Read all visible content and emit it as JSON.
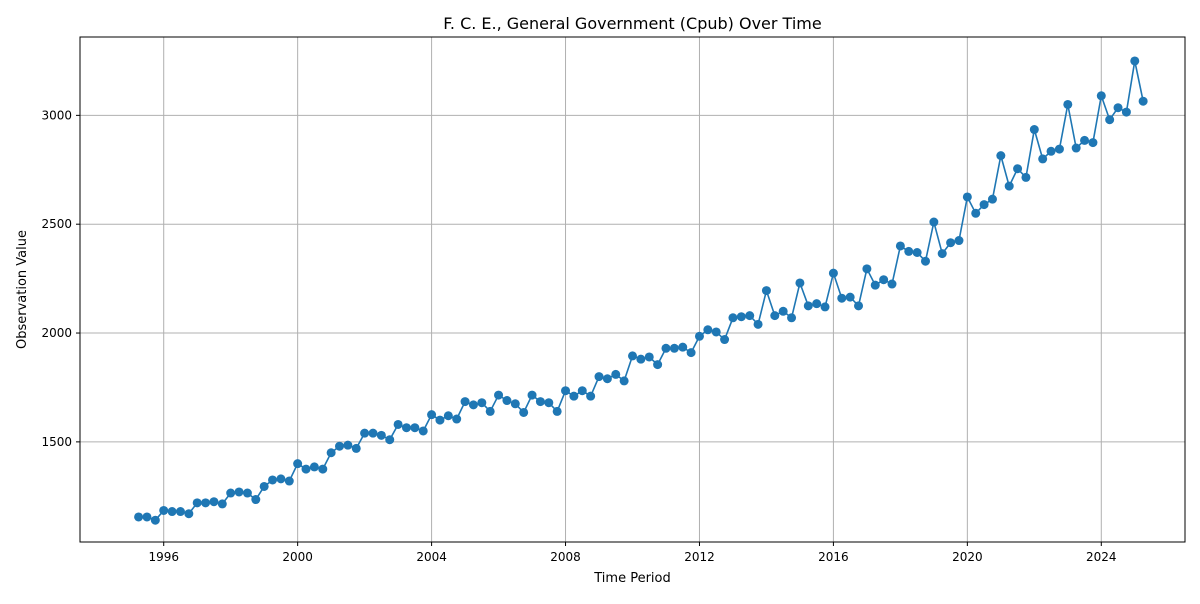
{
  "chart_data": {
    "type": "line",
    "title": "F. C. E., General Government (Cpub) Over Time",
    "xlabel": "Time Period",
    "ylabel": "Observation Value",
    "xlim": [
      1993.5,
      2026.5
    ],
    "ylim": [
      1040,
      3360
    ],
    "x_ticks": [
      1996,
      2000,
      2004,
      2008,
      2012,
      2016,
      2020,
      2024
    ],
    "y_ticks": [
      1500,
      2000,
      2500,
      3000
    ],
    "grid": true,
    "colors": {
      "series": "#1f77b4",
      "grid": "#b0b0b0",
      "axes": "#000000"
    },
    "series": [
      {
        "x": [
          "1995-Q2",
          "1995-Q3",
          "1995-Q4",
          "1996-Q1",
          "1996-Q2",
          "1996-Q3",
          "1996-Q4",
          "1997-Q1",
          "1997-Q2",
          "1997-Q3",
          "1997-Q4",
          "1998-Q1",
          "1998-Q2",
          "1998-Q3",
          "1998-Q4",
          "1999-Q1",
          "1999-Q2",
          "1999-Q3",
          "1999-Q4",
          "2000-Q1",
          "2000-Q2",
          "2000-Q3",
          "2000-Q4",
          "2001-Q1",
          "2001-Q2",
          "2001-Q3",
          "2001-Q4",
          "2002-Q1",
          "2002-Q2",
          "2002-Q3",
          "2002-Q4",
          "2003-Q1",
          "2003-Q2",
          "2003-Q3",
          "2003-Q4",
          "2004-Q1",
          "2004-Q2",
          "2004-Q3",
          "2004-Q4",
          "2005-Q1",
          "2005-Q2",
          "2005-Q3",
          "2005-Q4",
          "2006-Q1",
          "2006-Q2",
          "2006-Q3",
          "2006-Q4",
          "2007-Q1",
          "2007-Q2",
          "2007-Q3",
          "2007-Q4",
          "2008-Q1",
          "2008-Q2",
          "2008-Q3",
          "2008-Q4",
          "2009-Q1",
          "2009-Q2",
          "2009-Q3",
          "2009-Q4",
          "2010-Q1",
          "2010-Q2",
          "2010-Q3",
          "2010-Q4",
          "2011-Q1",
          "2011-Q2",
          "2011-Q3",
          "2011-Q4",
          "2012-Q1",
          "2012-Q2",
          "2012-Q3",
          "2012-Q4",
          "2013-Q1",
          "2013-Q2",
          "2013-Q3",
          "2013-Q4",
          "2014-Q1",
          "2014-Q2",
          "2014-Q3",
          "2014-Q4",
          "2015-Q1",
          "2015-Q2",
          "2015-Q3",
          "2015-Q4",
          "2016-Q1",
          "2016-Q2",
          "2016-Q3",
          "2016-Q4",
          "2017-Q1",
          "2017-Q2",
          "2017-Q3",
          "2017-Q4",
          "2018-Q1",
          "2018-Q2",
          "2018-Q3",
          "2018-Q4",
          "2019-Q1",
          "2019-Q2",
          "2019-Q3",
          "2019-Q4",
          "2020-Q1",
          "2020-Q2",
          "2020-Q3",
          "2020-Q4",
          "2021-Q1",
          "2021-Q2",
          "2021-Q3",
          "2021-Q4",
          "2022-Q1",
          "2022-Q2",
          "2022-Q3",
          "2022-Q4",
          "2023-Q1",
          "2023-Q2",
          "2023-Q3",
          "2023-Q4",
          "2024-Q1",
          "2024-Q2",
          "2024-Q3",
          "2024-Q4",
          "2025-Q1",
          "2025-Q2"
        ],
        "y": [
          1155,
          1155,
          1140,
          1185,
          1180,
          1180,
          1170,
          1220,
          1220,
          1225,
          1215,
          1265,
          1270,
          1265,
          1235,
          1295,
          1325,
          1330,
          1320,
          1400,
          1375,
          1385,
          1375,
          1450,
          1480,
          1485,
          1470,
          1540,
          1540,
          1530,
          1510,
          1580,
          1565,
          1565,
          1550,
          1625,
          1600,
          1620,
          1605,
          1685,
          1670,
          1680,
          1640,
          1715,
          1690,
          1675,
          1635,
          1715,
          1685,
          1680,
          1640,
          1735,
          1710,
          1735,
          1710,
          1800,
          1790,
          1810,
          1780,
          1895,
          1880,
          1890,
          1855,
          1930,
          1930,
          1935,
          1910,
          1985,
          2015,
          2005,
          1970,
          2070,
          2075,
          2080,
          2040,
          2195,
          2080,
          2100,
          2070,
          2230,
          2125,
          2135,
          2120,
          2275,
          2160,
          2165,
          2125,
          2295,
          2220,
          2245,
          2225,
          2400,
          2375,
          2370,
          2330,
          2510,
          2365,
          2415,
          2425,
          2625,
          2550,
          2590,
          2615,
          2815,
          2675,
          2755,
          2715,
          2935,
          2800,
          2835,
          2845,
          3050,
          2850,
          2885,
          2875,
          3090,
          2980,
          3035,
          3015,
          3250,
          3065
        ]
      }
    ]
  }
}
